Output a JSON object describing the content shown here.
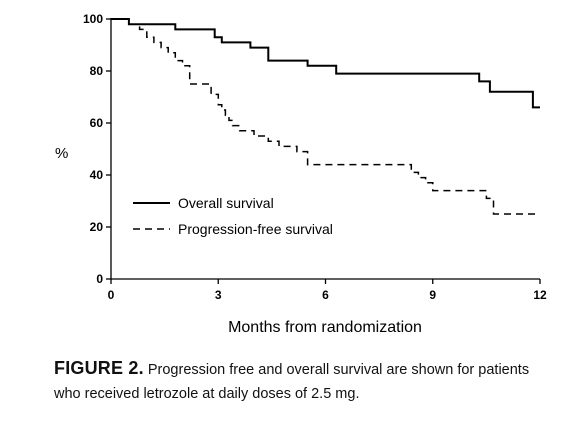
{
  "chart_data": {
    "type": "line",
    "xlabel": "Months from randomization",
    "ylabel": "%",
    "xlim": [
      0,
      12
    ],
    "ylim": [
      0,
      100
    ],
    "xticks": [
      0,
      3,
      6,
      9,
      12
    ],
    "yticks": [
      0,
      20,
      40,
      60,
      80,
      100
    ],
    "grid": false,
    "legend_position": "lower-left",
    "series": [
      {
        "name": "Overall survival",
        "style": "solid",
        "x": [
          0,
          0.5,
          1.8,
          2.9,
          3.1,
          3.9,
          4.4,
          5.5,
          6.3,
          10.3,
          10.6,
          11.8,
          12
        ],
        "y": [
          100,
          98,
          96,
          93,
          91,
          89,
          84,
          82,
          79,
          76,
          72,
          66,
          66
        ]
      },
      {
        "name": "Progression-free survival",
        "style": "dashed",
        "x": [
          0,
          0.5,
          0.8,
          1.0,
          1.2,
          1.4,
          1.6,
          1.8,
          2.0,
          2.2,
          2.8,
          3.0,
          3.1,
          3.2,
          3.3,
          3.4,
          3.6,
          4.0,
          4.4,
          4.7,
          5.2,
          5.5,
          8.0,
          8.4,
          8.6,
          8.8,
          9.0,
          10.3,
          10.5,
          10.7,
          12.0
        ],
        "y": [
          100,
          98,
          96,
          93,
          91,
          89,
          87,
          84,
          82,
          75,
          71,
          67,
          65,
          63,
          61,
          59,
          57,
          55,
          53,
          51,
          49,
          44,
          44,
          41,
          39,
          37,
          34,
          34,
          31,
          25,
          25
        ]
      }
    ]
  },
  "caption": {
    "label": "FIGURE 2.",
    "text": "Progression free and overall survival are shown for patients who received letrozole at daily doses of 2.5 mg."
  }
}
